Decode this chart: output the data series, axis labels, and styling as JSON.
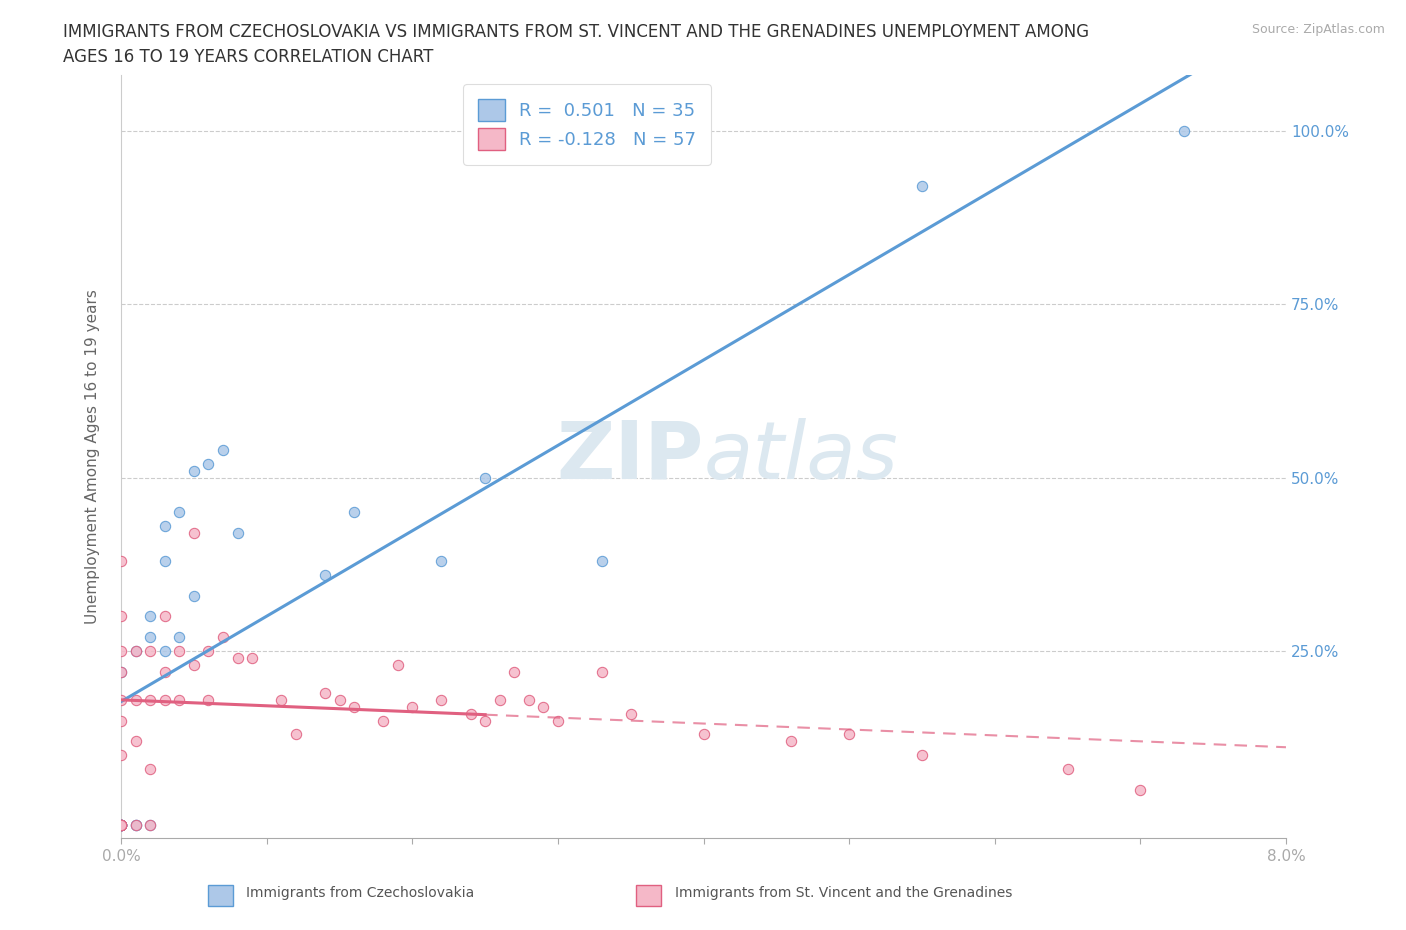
{
  "title_line1": "IMMIGRANTS FROM CZECHOSLOVAKIA VS IMMIGRANTS FROM ST. VINCENT AND THE GRENADINES UNEMPLOYMENT AMONG",
  "title_line2": "AGES 16 TO 19 YEARS CORRELATION CHART",
  "source_text": "Source: ZipAtlas.com",
  "ylabel": "Unemployment Among Ages 16 to 19 years",
  "xlim": [
    0.0,
    0.08
  ],
  "ylim": [
    -0.02,
    1.08
  ],
  "xticks": [
    0.0,
    0.01,
    0.02,
    0.03,
    0.04,
    0.05,
    0.06,
    0.07,
    0.08
  ],
  "xticklabels": [
    "0.0%",
    "",
    "",
    "",
    "",
    "",
    "",
    "",
    "8.0%"
  ],
  "yticks": [
    0.25,
    0.5,
    0.75,
    1.0
  ],
  "yticklabels": [
    "25.0%",
    "50.0%",
    "75.0%",
    "100.0%"
  ],
  "blue_color": "#adc8e8",
  "pink_color": "#f5b8c8",
  "blue_line_color": "#5b9bd5",
  "pink_line_color": "#e06080",
  "watermark_color": "#dce8f0",
  "R_blue": 0.501,
  "N_blue": 35,
  "R_pink": -0.128,
  "N_pink": 57,
  "blue_scatter_x": [
    0.0,
    0.0,
    0.0,
    0.0,
    0.0,
    0.0,
    0.0,
    0.0,
    0.001,
    0.001,
    0.001,
    0.002,
    0.002,
    0.002,
    0.003,
    0.003,
    0.003,
    0.004,
    0.004,
    0.005,
    0.005,
    0.006,
    0.007,
    0.008,
    0.014,
    0.016,
    0.022,
    0.025,
    0.033,
    0.055,
    0.073
  ],
  "blue_scatter_y": [
    0.0,
    0.0,
    0.0,
    0.0,
    0.0,
    0.0,
    0.0,
    0.22,
    0.0,
    0.0,
    0.25,
    0.0,
    0.27,
    0.3,
    0.25,
    0.38,
    0.43,
    0.27,
    0.45,
    0.33,
    0.51,
    0.52,
    0.54,
    0.42,
    0.36,
    0.45,
    0.38,
    0.5,
    0.38,
    0.92,
    1.0
  ],
  "pink_scatter_x": [
    0.0,
    0.0,
    0.0,
    0.0,
    0.0,
    0.0,
    0.0,
    0.0,
    0.0,
    0.0,
    0.0,
    0.0,
    0.001,
    0.001,
    0.001,
    0.001,
    0.002,
    0.002,
    0.002,
    0.002,
    0.003,
    0.003,
    0.003,
    0.004,
    0.004,
    0.005,
    0.005,
    0.006,
    0.006,
    0.007,
    0.008,
    0.009,
    0.011,
    0.012,
    0.014,
    0.015,
    0.016,
    0.018,
    0.019,
    0.02,
    0.022,
    0.024,
    0.025,
    0.026,
    0.027,
    0.028,
    0.029,
    0.03,
    0.033,
    0.035,
    0.04,
    0.046,
    0.05,
    0.055,
    0.065,
    0.07
  ],
  "pink_scatter_y": [
    0.0,
    0.0,
    0.0,
    0.0,
    0.0,
    0.1,
    0.15,
    0.18,
    0.22,
    0.25,
    0.3,
    0.38,
    0.0,
    0.12,
    0.18,
    0.25,
    0.0,
    0.08,
    0.18,
    0.25,
    0.18,
    0.22,
    0.3,
    0.18,
    0.25,
    0.23,
    0.42,
    0.18,
    0.25,
    0.27,
    0.24,
    0.24,
    0.18,
    0.13,
    0.19,
    0.18,
    0.17,
    0.15,
    0.23,
    0.17,
    0.18,
    0.16,
    0.15,
    0.18,
    0.22,
    0.18,
    0.17,
    0.15,
    0.22,
    0.16,
    0.13,
    0.12,
    0.13,
    0.1,
    0.08,
    0.05
  ],
  "legend_fontsize": 13,
  "title_fontsize": 12,
  "axis_label_fontsize": 11,
  "tick_fontsize": 11
}
